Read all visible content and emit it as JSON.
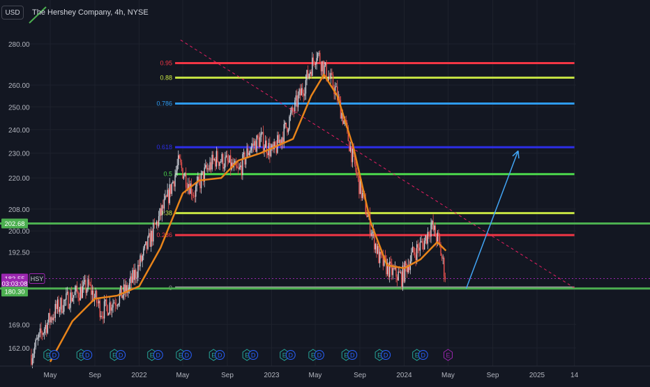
{
  "header": {
    "currency_label": "USD",
    "title": "The Hershey Company, 4h, NYSE"
  },
  "colors": {
    "background": "#131722",
    "grid": "#1e222d",
    "axis_text": "#b2b5be",
    "candle_up": "#d1d4dc",
    "candle_down": "#ef5350",
    "moving_average": "#e8841a",
    "arrow": "#42a5f5",
    "trendline": "#e91e63",
    "level_green": "#4caf50",
    "current_price": "#9c27b0"
  },
  "chart_data": {
    "type": "candlestick",
    "title": "The Hershey Company, 4h, NYSE",
    "currency": "USD",
    "y_scale": "log",
    "ylim": [
      157,
      290
    ],
    "y_ticks": [
      162.0,
      169.0,
      192.5,
      200.0,
      208.0,
      220.0,
      230.0,
      240.0,
      250.0,
      260.0,
      280.0
    ],
    "x_ticks": [
      {
        "label": "May",
        "date": "2021-05-01"
      },
      {
        "label": "Sep",
        "date": "2021-09-01"
      },
      {
        "label": "2022",
        "date": "2022-01-01"
      },
      {
        "label": "May",
        "date": "2022-05-01"
      },
      {
        "label": "Sep",
        "date": "2022-09-01"
      },
      {
        "label": "2023",
        "date": "2023-01-01"
      },
      {
        "label": "May",
        "date": "2023-05-01"
      },
      {
        "label": "Sep",
        "date": "2023-09-01"
      },
      {
        "label": "2024",
        "date": "2024-01-01"
      },
      {
        "label": "May",
        "date": "2024-05-01"
      },
      {
        "label": "Sep",
        "date": "2024-09-01"
      },
      {
        "label": "2025",
        "date": "2025-01-01"
      },
      {
        "label": "14",
        "date": "2025-04-14"
      }
    ],
    "price_path": [
      {
        "date": "2021-03-10",
        "close": 160
      },
      {
        "date": "2021-04-15",
        "close": 168
      },
      {
        "date": "2021-05-20",
        "close": 174
      },
      {
        "date": "2021-07-01",
        "close": 178
      },
      {
        "date": "2021-08-15",
        "close": 181
      },
      {
        "date": "2021-09-20",
        "close": 173
      },
      {
        "date": "2021-10-20",
        "close": 176
      },
      {
        "date": "2021-12-01",
        "close": 180
      },
      {
        "date": "2022-01-01",
        "close": 188
      },
      {
        "date": "2022-02-10",
        "close": 200
      },
      {
        "date": "2022-03-20",
        "close": 212
      },
      {
        "date": "2022-04-20",
        "close": 226
      },
      {
        "date": "2022-05-10",
        "close": 220
      },
      {
        "date": "2022-06-01",
        "close": 214
      },
      {
        "date": "2022-07-01",
        "close": 222
      },
      {
        "date": "2022-08-01",
        "close": 228
      },
      {
        "date": "2022-09-01",
        "close": 226
      },
      {
        "date": "2022-10-01",
        "close": 222
      },
      {
        "date": "2022-11-01",
        "close": 232
      },
      {
        "date": "2022-12-01",
        "close": 236
      },
      {
        "date": "2023-01-05",
        "close": 230
      },
      {
        "date": "2023-02-01",
        "close": 238
      },
      {
        "date": "2023-03-01",
        "close": 248
      },
      {
        "date": "2023-04-01",
        "close": 260
      },
      {
        "date": "2023-05-05",
        "close": 276
      },
      {
        "date": "2023-05-25",
        "close": 268
      },
      {
        "date": "2023-06-25",
        "close": 258
      },
      {
        "date": "2023-07-25",
        "close": 240
      },
      {
        "date": "2023-08-25",
        "close": 220
      },
      {
        "date": "2023-09-25",
        "close": 204
      },
      {
        "date": "2023-10-25",
        "close": 190
      },
      {
        "date": "2023-11-25",
        "close": 186
      },
      {
        "date": "2023-12-25",
        "close": 184
      },
      {
        "date": "2024-01-25",
        "close": 192
      },
      {
        "date": "2024-02-25",
        "close": 196
      },
      {
        "date": "2024-03-15",
        "close": 202
      },
      {
        "date": "2024-04-05",
        "close": 196
      },
      {
        "date": "2024-04-25",
        "close": 183.55
      }
    ],
    "moving_average": [
      {
        "date": "2021-05-01",
        "value": 158
      },
      {
        "date": "2021-07-01",
        "value": 170
      },
      {
        "date": "2021-09-01",
        "value": 177
      },
      {
        "date": "2021-11-01",
        "value": 178
      },
      {
        "date": "2022-01-01",
        "value": 181
      },
      {
        "date": "2022-03-01",
        "value": 194
      },
      {
        "date": "2022-05-01",
        "value": 214
      },
      {
        "date": "2022-06-15",
        "value": 219
      },
      {
        "date": "2022-08-15",
        "value": 220
      },
      {
        "date": "2022-10-01",
        "value": 227
      },
      {
        "date": "2022-12-01",
        "value": 230
      },
      {
        "date": "2023-01-15",
        "value": 233
      },
      {
        "date": "2023-03-01",
        "value": 236
      },
      {
        "date": "2023-04-20",
        "value": 255
      },
      {
        "date": "2023-05-25",
        "value": 265
      },
      {
        "date": "2023-07-01",
        "value": 255
      },
      {
        "date": "2023-08-15",
        "value": 232
      },
      {
        "date": "2023-10-01",
        "value": 203
      },
      {
        "date": "2023-11-15",
        "value": 188
      },
      {
        "date": "2024-01-01",
        "value": 187
      },
      {
        "date": "2024-02-15",
        "value": 190
      },
      {
        "date": "2024-04-01",
        "value": 196
      },
      {
        "date": "2024-04-25",
        "value": 193
      }
    ],
    "fib_levels": [
      {
        "label": "0.95",
        "price": 270.5,
        "color": "#f23645",
        "start": "2022-04-10",
        "end": "2025-04-14"
      },
      {
        "label": "0.88",
        "price": 263.5,
        "color": "#c6e443",
        "start": "2022-04-10",
        "end": "2025-04-14"
      },
      {
        "label": "0.786",
        "price": 251.5,
        "color": "#2e9bf0",
        "start": "2022-04-10",
        "end": "2025-04-14"
      },
      {
        "label": "0.618",
        "price": 232.5,
        "color": "#2d2ee8",
        "start": "2022-04-10",
        "end": "2025-04-14"
      },
      {
        "label": "0.5",
        "price": 221.5,
        "color": "#4cd84c",
        "start": "2022-04-10",
        "end": "2025-04-14"
      },
      {
        "label": "0.38",
        "price": 206.5,
        "color": "#c6e443",
        "start": "2022-04-10",
        "end": "2025-04-14"
      },
      {
        "label": "0.236",
        "price": 198.5,
        "color": "#f23645",
        "start": "2022-04-10",
        "end": "2025-04-14"
      },
      {
        "label": "0",
        "price": 180.5,
        "color": "#9e9e9e",
        "start": "2022-04-10",
        "end": "2025-04-14"
      }
    ],
    "horizontal_levels": [
      {
        "price": 202.68,
        "color": "#4caf50"
      },
      {
        "price": 180.3,
        "color": "#4caf50"
      }
    ],
    "current_price_line": {
      "price": 183.55,
      "color": "#9c27b0"
    },
    "trendline": {
      "start": {
        "date": "2022-04-25",
        "price": 282
      },
      "end": {
        "date": "2025-04-14",
        "price": 180.5
      }
    },
    "projection_arrow": {
      "start": {
        "date": "2024-06-20",
        "price": 180.3
      },
      "end": {
        "date": "2024-11-10",
        "price": 231
      }
    },
    "price_labels": [
      {
        "text": "202.68",
        "price": 202.68,
        "bg": "#4caf50",
        "color": "#ffffff"
      },
      {
        "text": "183.55",
        "price": 183.55,
        "bg": "#9c27b0",
        "color": "#ffffff"
      },
      {
        "text": "03:03:08",
        "price": 181.9,
        "bg": "#9c27b0",
        "color": "#ffffff"
      },
      {
        "text": "180.30",
        "price": 179.3,
        "bg": "#4caf50",
        "color": "#ffffff"
      }
    ],
    "symbol_tag": {
      "text": "HSY",
      "price": 183.55
    },
    "event_markers": [
      {
        "date": "2021-04-25",
        "labels": [
          "E",
          "D"
        ],
        "color": "#26a69a"
      },
      {
        "date": "2021-07-25",
        "labels": [
          "E",
          "D"
        ],
        "color": "#26a69a"
      },
      {
        "date": "2021-10-25",
        "labels": [
          "E",
          "D"
        ],
        "color": "#26a69a"
      },
      {
        "date": "2022-02-05",
        "labels": [
          "E",
          "D"
        ],
        "color": "#26a69a"
      },
      {
        "date": "2022-04-25",
        "labels": [
          "E",
          "D"
        ],
        "color": "#26a69a"
      },
      {
        "date": "2022-07-25",
        "labels": [
          "E",
          "D"
        ],
        "color": "#26a69a"
      },
      {
        "date": "2022-10-25",
        "labels": [
          "E",
          "D"
        ],
        "color": "#26a69a"
      },
      {
        "date": "2023-02-05",
        "labels": [
          "E",
          "D"
        ],
        "color": "#26a69a"
      },
      {
        "date": "2023-04-25",
        "labels": [
          "E",
          "D"
        ],
        "color": "#26a69a"
      },
      {
        "date": "2023-07-25",
        "labels": [
          "E",
          "D"
        ],
        "color": "#26a69a"
      },
      {
        "date": "2023-10-25",
        "labels": [
          "E",
          "D"
        ],
        "color": "#26a69a"
      },
      {
        "date": "2024-02-05",
        "labels": [
          "E",
          "D"
        ],
        "color": "#26a69a"
      },
      {
        "date": "2024-05-01",
        "labels": [
          "E"
        ],
        "color": "#9c27b0"
      }
    ],
    "grid": true,
    "legend": "none"
  }
}
